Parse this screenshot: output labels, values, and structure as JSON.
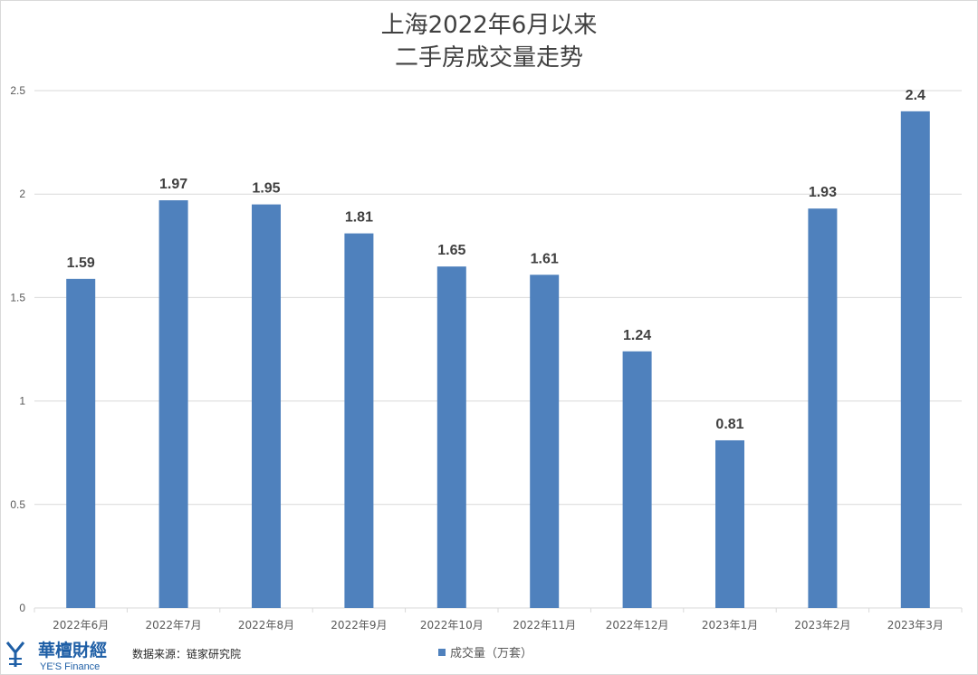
{
  "chart_data": {
    "type": "bar",
    "title_lines": [
      "上海2022年6月以来",
      "二手房成交量走势"
    ],
    "categories": [
      "2022年6月",
      "2022年7月",
      "2022年8月",
      "2022年9月",
      "2022年10月",
      "2022年11月",
      "2022年12月",
      "2023年1月",
      "2023年2月",
      "2023年3月"
    ],
    "series": [
      {
        "name": "成交量（万套）",
        "values": [
          1.59,
          1.97,
          1.95,
          1.81,
          1.65,
          1.61,
          1.24,
          0.81,
          1.93,
          2.4
        ],
        "labels": [
          "1.59",
          "1.97",
          "1.95",
          "1.81",
          "1.65",
          "1.61",
          "1.24",
          "0.81",
          "1.93",
          "2.4"
        ]
      }
    ],
    "ylim": [
      0,
      2.5
    ],
    "yticks": [
      "0",
      "0.5",
      "1",
      "1.5",
      "2",
      "2.5"
    ],
    "ytick_values": [
      0,
      0.5,
      1,
      1.5,
      2,
      2.5
    ],
    "grid": true,
    "legend_position": "bottom",
    "bar_color": "#4f81bd",
    "grid_color": "#d9d9d9"
  },
  "source_note": "数据来源：链家研究院",
  "logo": {
    "cn_text": "華檀財經",
    "en_text": "YE'S Finance",
    "color": "#1f5fa6"
  }
}
